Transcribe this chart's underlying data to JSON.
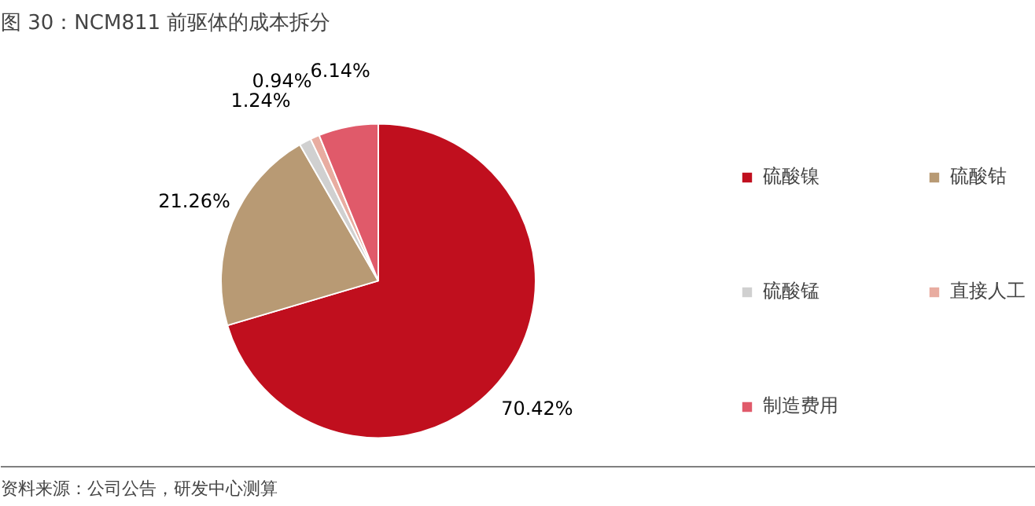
{
  "chart_data": {
    "type": "pie",
    "title": "图 30：NCM811 前驱体的成本拆分",
    "categories": [
      "硫酸镍",
      "硫酸钴",
      "硫酸锰",
      "直接人工",
      "制造费用"
    ],
    "values": [
      70.42,
      21.26,
      1.24,
      0.94,
      6.14
    ],
    "colors": [
      "#c00f1e",
      "#b89a74",
      "#d0d0d0",
      "#e8aca0",
      "#e05a6a"
    ],
    "value_labels": [
      "70.42%",
      "21.26%",
      "1.24%",
      "0.94%",
      "6.14%"
    ],
    "legend": "right",
    "annotations": [
      "资料来源：公司公告，研发中心测算"
    ]
  }
}
